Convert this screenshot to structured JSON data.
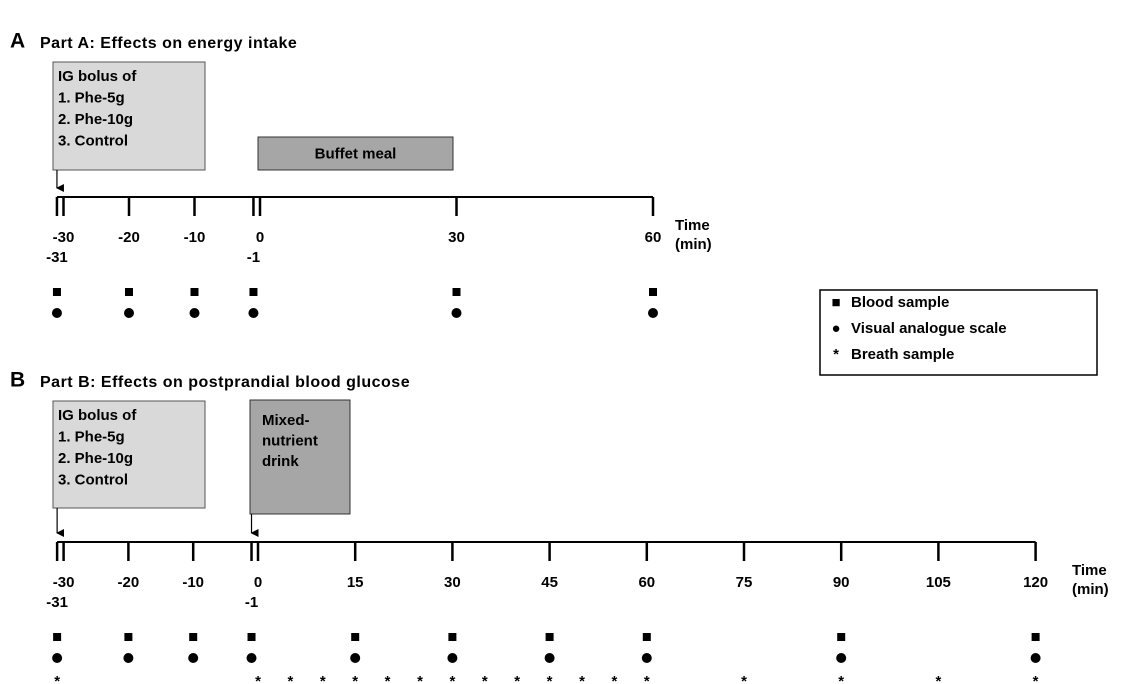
{
  "panels": [
    {
      "letter": "A",
      "title": "Part A: Effects on energy intake",
      "bolus_box": [
        "IG bolus of",
        "1. Phe-5g",
        "2. Phe-10g",
        "3. Control"
      ],
      "meal_box": [
        "Buffet meal"
      ],
      "ticks": [
        -30,
        -20,
        -10,
        0,
        30,
        60
      ],
      "ticks_lower": [
        -31,
        -1
      ],
      "axis_label": [
        "Time",
        "(min)"
      ],
      "blood_sample": [
        -31,
        -20,
        -10,
        -1,
        30,
        60
      ],
      "visual_analogue_scale": [
        -31,
        -20,
        -10,
        -1,
        30,
        60
      ],
      "breath_sample": []
    },
    {
      "letter": "B",
      "title": "Part B: Effects on postprandial blood glucose",
      "bolus_box": [
        "IG bolus of",
        "1. Phe-5g",
        "2. Phe-10g",
        "3. Control"
      ],
      "meal_box": [
        "Mixed-",
        "nutrient",
        "drink"
      ],
      "ticks": [
        -30,
        -20,
        -10,
        0,
        15,
        30,
        45,
        60,
        75,
        90,
        105,
        120
      ],
      "ticks_lower": [
        -31,
        -1
      ],
      "axis_label": [
        "Time",
        "(min)"
      ],
      "blood_sample": [
        -31,
        -20,
        -10,
        -1,
        15,
        30,
        45,
        60,
        90,
        120
      ],
      "visual_analogue_scale": [
        -31,
        -20,
        -10,
        -1,
        15,
        30,
        45,
        60,
        90,
        120
      ],
      "breath_sample": [
        -31,
        0,
        5,
        10,
        15,
        20,
        25,
        30,
        35,
        40,
        45,
        50,
        55,
        60,
        75,
        90,
        105,
        120
      ]
    }
  ],
  "legend": [
    {
      "symbol": "■",
      "label": "Blood sample"
    },
    {
      "symbol": "●",
      "label": "Visual analogue scale"
    },
    {
      "symbol": "*",
      "label": "Breath sample"
    }
  ]
}
